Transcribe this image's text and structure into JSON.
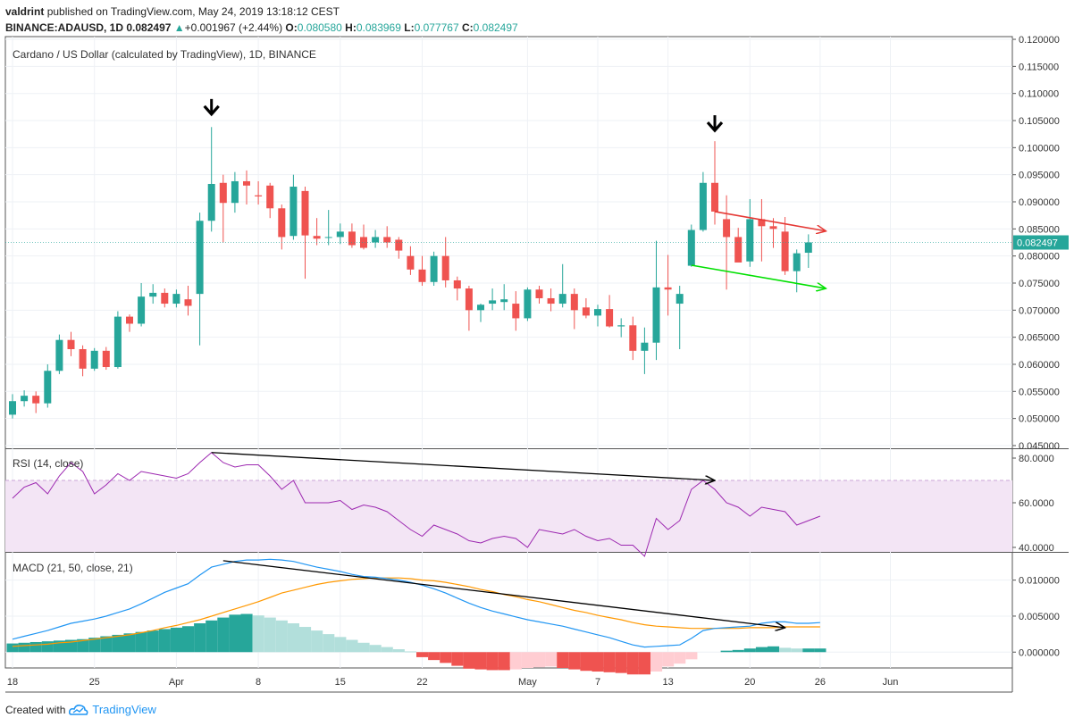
{
  "header": {
    "author": "valdrint",
    "published": "published on TradingView.com, May 24, 2019 13:18:12 CEST",
    "symbol": "BINANCE:ADAUSD, 1D",
    "last": "0.082497",
    "change_arrow": "▲",
    "change": "+0.001967 (+2.44%)",
    "o_label": "O:",
    "o": "0.080580",
    "h_label": "H:",
    "h": "0.083969",
    "l_label": "L:",
    "l": "0.077767",
    "c_label": "C:",
    "c": "0.082497"
  },
  "footer": {
    "created_with": "Created with",
    "brand": "TradingView",
    "logo_icon": "tradingview-cloud-icon"
  },
  "colors": {
    "up": "#26a69a",
    "down": "#ef5350",
    "rsi": "#9c27b0",
    "rsi_band": "#f3e5f5",
    "macd": "#2196f3",
    "signal": "#ff9800",
    "hist_up_strong": "#26a69a",
    "hist_up_weak": "#b2dfdb",
    "hist_down_strong": "#ef5350",
    "hist_down_weak": "#ffcdd2",
    "red_trendline": "#e53935",
    "green_trendline": "#00e000",
    "divergence_line": "#000000"
  },
  "chart_data": [
    {
      "type": "candlestick",
      "title": "Cardano / US Dollar (calculated by TradingView), 1D, BINANCE",
      "ylim": [
        0.0445,
        0.1205
      ],
      "yticks": [
        "0.045000",
        "0.050000",
        "0.055000",
        "0.060000",
        "0.065000",
        "0.070000",
        "0.075000",
        "0.080000",
        "0.085000",
        "0.090000",
        "0.095000",
        "0.100000",
        "0.105000",
        "0.110000",
        "0.115000",
        "0.120000"
      ],
      "ytick_values": [
        0.045,
        0.05,
        0.055,
        0.06,
        0.065,
        0.07,
        0.075,
        0.08,
        0.085,
        0.09,
        0.095,
        0.1,
        0.105,
        0.11,
        0.115,
        0.12
      ],
      "last_price_label": "0.082497",
      "last_price": 0.082497,
      "x_tick_labels": [
        {
          "day": 0,
          "label": "18"
        },
        {
          "day": 7,
          "label": "25"
        },
        {
          "day": 14,
          "label": "Apr"
        },
        {
          "day": 21,
          "label": "8"
        },
        {
          "day": 28,
          "label": "15"
        },
        {
          "day": 35,
          "label": "22"
        },
        {
          "day": 44,
          "label": "May"
        },
        {
          "day": 50,
          "label": "7"
        },
        {
          "day": 56,
          "label": "13"
        },
        {
          "day": 63,
          "label": "20"
        },
        {
          "day": 69,
          "label": "26"
        },
        {
          "day": 75,
          "label": "Jun"
        }
      ],
      "candles": [
        {
          "d": 0,
          "o": 0.0507,
          "h": 0.0545,
          "l": 0.05,
          "c": 0.0532
        },
        {
          "d": 1,
          "o": 0.0532,
          "h": 0.0552,
          "l": 0.0522,
          "c": 0.0542
        },
        {
          "d": 2,
          "o": 0.0542,
          "h": 0.055,
          "l": 0.051,
          "c": 0.0528
        },
        {
          "d": 3,
          "o": 0.0528,
          "h": 0.06,
          "l": 0.052,
          "c": 0.0588
        },
        {
          "d": 4,
          "o": 0.0588,
          "h": 0.0655,
          "l": 0.0582,
          "c": 0.0645
        },
        {
          "d": 5,
          "o": 0.0645,
          "h": 0.066,
          "l": 0.0615,
          "c": 0.0628
        },
        {
          "d": 6,
          "o": 0.0628,
          "h": 0.0635,
          "l": 0.0578,
          "c": 0.0592
        },
        {
          "d": 7,
          "o": 0.0592,
          "h": 0.063,
          "l": 0.0588,
          "c": 0.0625
        },
        {
          "d": 8,
          "o": 0.0625,
          "h": 0.0632,
          "l": 0.059,
          "c": 0.0595
        },
        {
          "d": 9,
          "o": 0.0595,
          "h": 0.0698,
          "l": 0.0592,
          "c": 0.0688
        },
        {
          "d": 10,
          "o": 0.0688,
          "h": 0.0692,
          "l": 0.066,
          "c": 0.0675
        },
        {
          "d": 11,
          "o": 0.0675,
          "h": 0.075,
          "l": 0.067,
          "c": 0.0725
        },
        {
          "d": 12,
          "o": 0.0725,
          "h": 0.0748,
          "l": 0.0712,
          "c": 0.0732
        },
        {
          "d": 13,
          "o": 0.0732,
          "h": 0.074,
          "l": 0.0705,
          "c": 0.0712
        },
        {
          "d": 14,
          "o": 0.0712,
          "h": 0.0738,
          "l": 0.0705,
          "c": 0.073
        },
        {
          "d": 15,
          "o": 0.072,
          "h": 0.0745,
          "l": 0.069,
          "c": 0.0708
        },
        {
          "d": 16,
          "o": 0.073,
          "h": 0.088,
          "l": 0.0635,
          "c": 0.0865
        },
        {
          "d": 17,
          "o": 0.0865,
          "h": 0.1038,
          "l": 0.0845,
          "c": 0.0933
        },
        {
          "d": 18,
          "o": 0.0935,
          "h": 0.095,
          "l": 0.0825,
          "c": 0.0898
        },
        {
          "d": 19,
          "o": 0.0898,
          "h": 0.0955,
          "l": 0.088,
          "c": 0.0938
        },
        {
          "d": 20,
          "o": 0.0938,
          "h": 0.0958,
          "l": 0.0895,
          "c": 0.093
        },
        {
          "d": 21,
          "o": 0.0912,
          "h": 0.0938,
          "l": 0.0895,
          "c": 0.091
        },
        {
          "d": 22,
          "o": 0.093,
          "h": 0.0935,
          "l": 0.087,
          "c": 0.0888
        },
        {
          "d": 23,
          "o": 0.0888,
          "h": 0.0895,
          "l": 0.0812,
          "c": 0.0835
        },
        {
          "d": 24,
          "o": 0.0837,
          "h": 0.095,
          "l": 0.083,
          "c": 0.0928
        },
        {
          "d": 25,
          "o": 0.092,
          "h": 0.0928,
          "l": 0.0758,
          "c": 0.0838
        },
        {
          "d": 26,
          "o": 0.0837,
          "h": 0.087,
          "l": 0.082,
          "c": 0.0832
        },
        {
          "d": 27,
          "o": 0.0835,
          "h": 0.0885,
          "l": 0.082,
          "c": 0.0835
        },
        {
          "d": 28,
          "o": 0.0835,
          "h": 0.086,
          "l": 0.0822,
          "c": 0.0845
        },
        {
          "d": 29,
          "o": 0.0845,
          "h": 0.086,
          "l": 0.0815,
          "c": 0.082
        },
        {
          "d": 30,
          "o": 0.0835,
          "h": 0.0858,
          "l": 0.0812,
          "c": 0.0815
        },
        {
          "d": 31,
          "o": 0.0825,
          "h": 0.0848,
          "l": 0.0815,
          "c": 0.0835
        },
        {
          "d": 32,
          "o": 0.0835,
          "h": 0.0855,
          "l": 0.0815,
          "c": 0.0825
        },
        {
          "d": 33,
          "o": 0.083,
          "h": 0.0835,
          "l": 0.0795,
          "c": 0.081
        },
        {
          "d": 34,
          "o": 0.08,
          "h": 0.0818,
          "l": 0.0765,
          "c": 0.0775
        },
        {
          "d": 35,
          "o": 0.0775,
          "h": 0.08,
          "l": 0.0745,
          "c": 0.0752
        },
        {
          "d": 36,
          "o": 0.0752,
          "h": 0.0808,
          "l": 0.0745,
          "c": 0.08
        },
        {
          "d": 37,
          "o": 0.08,
          "h": 0.0835,
          "l": 0.0742,
          "c": 0.0755
        },
        {
          "d": 38,
          "o": 0.0755,
          "h": 0.0762,
          "l": 0.0718,
          "c": 0.074
        },
        {
          "d": 39,
          "o": 0.074,
          "h": 0.0745,
          "l": 0.0662,
          "c": 0.07
        },
        {
          "d": 40,
          "o": 0.07,
          "h": 0.0712,
          "l": 0.0678,
          "c": 0.071
        },
        {
          "d": 41,
          "o": 0.0712,
          "h": 0.074,
          "l": 0.07,
          "c": 0.0718
        },
        {
          "d": 42,
          "o": 0.0715,
          "h": 0.0748,
          "l": 0.07,
          "c": 0.072
        },
        {
          "d": 43,
          "o": 0.0712,
          "h": 0.0735,
          "l": 0.0662,
          "c": 0.0685
        },
        {
          "d": 44,
          "o": 0.0685,
          "h": 0.0742,
          "l": 0.068,
          "c": 0.0738
        },
        {
          "d": 45,
          "o": 0.0738,
          "h": 0.0745,
          "l": 0.0712,
          "c": 0.0722
        },
        {
          "d": 46,
          "o": 0.0722,
          "h": 0.074,
          "l": 0.0698,
          "c": 0.0712
        },
        {
          "d": 47,
          "o": 0.0712,
          "h": 0.0785,
          "l": 0.0705,
          "c": 0.073
        },
        {
          "d": 48,
          "o": 0.073,
          "h": 0.074,
          "l": 0.0665,
          "c": 0.07
        },
        {
          "d": 49,
          "o": 0.0705,
          "h": 0.0722,
          "l": 0.0685,
          "c": 0.069
        },
        {
          "d": 50,
          "o": 0.069,
          "h": 0.071,
          "l": 0.067,
          "c": 0.0702
        },
        {
          "d": 51,
          "o": 0.0702,
          "h": 0.0728,
          "l": 0.0668,
          "c": 0.067
        },
        {
          "d": 52,
          "o": 0.067,
          "h": 0.0685,
          "l": 0.065,
          "c": 0.0672
        },
        {
          "d": 53,
          "o": 0.0672,
          "h": 0.0688,
          "l": 0.0608,
          "c": 0.0625
        },
        {
          "d": 54,
          "o": 0.0625,
          "h": 0.0668,
          "l": 0.0582,
          "c": 0.064
        },
        {
          "d": 55,
          "o": 0.064,
          "h": 0.0828,
          "l": 0.0608,
          "c": 0.0742
        },
        {
          "d": 56,
          "o": 0.0742,
          "h": 0.0802,
          "l": 0.069,
          "c": 0.0738
        },
        {
          "d": 57,
          "o": 0.0712,
          "h": 0.0745,
          "l": 0.0628,
          "c": 0.073
        },
        {
          "d": 58,
          "o": 0.0782,
          "h": 0.0858,
          "l": 0.078,
          "c": 0.0848
        },
        {
          "d": 59,
          "o": 0.0848,
          "h": 0.0955,
          "l": 0.0845,
          "c": 0.0935
        },
        {
          "d": 60,
          "o": 0.0935,
          "h": 0.1012,
          "l": 0.0858,
          "c": 0.0882
        },
        {
          "d": 61,
          "o": 0.0868,
          "h": 0.0912,
          "l": 0.0738,
          "c": 0.0835
        },
        {
          "d": 62,
          "o": 0.0835,
          "h": 0.0852,
          "l": 0.079,
          "c": 0.0788
        },
        {
          "d": 63,
          "o": 0.079,
          "h": 0.0905,
          "l": 0.078,
          "c": 0.0868
        },
        {
          "d": 64,
          "o": 0.0868,
          "h": 0.0905,
          "l": 0.079,
          "c": 0.0855
        },
        {
          "d": 65,
          "o": 0.0855,
          "h": 0.087,
          "l": 0.0815,
          "c": 0.085
        },
        {
          "d": 66,
          "o": 0.0845,
          "h": 0.0872,
          "l": 0.0765,
          "c": 0.0772
        },
        {
          "d": 67,
          "o": 0.0772,
          "h": 0.0812,
          "l": 0.0733,
          "c": 0.0805
        },
        {
          "d": 68,
          "o": 0.0806,
          "h": 0.084,
          "l": 0.0778,
          "c": 0.0825
        }
      ],
      "annotations": {
        "peak_arrows": [
          {
            "day": 17,
            "price": 0.1075
          },
          {
            "day": 60,
            "price": 0.1045
          }
        ],
        "red_trendline": {
          "from": {
            "day": 60,
            "price": 0.0882
          },
          "to": {
            "day": 69.5,
            "price": 0.0846
          }
        },
        "green_trendline": {
          "from": {
            "day": 58,
            "price": 0.0783
          },
          "to": {
            "day": 69.5,
            "price": 0.074
          }
        }
      }
    },
    {
      "type": "line",
      "title": "RSI (14, close)",
      "ylim": [
        38,
        84
      ],
      "yticks": [
        "40.0000",
        "60.0000",
        "80.0000"
      ],
      "ytick_values": [
        40,
        60,
        80
      ],
      "band": [
        30,
        70
      ],
      "values": [
        62,
        67,
        69,
        64,
        72,
        78,
        74,
        64,
        68,
        73,
        70,
        74,
        73,
        72,
        71,
        73,
        78,
        82.5,
        78,
        76,
        77,
        77,
        72,
        66,
        70,
        60,
        60,
        60,
        61,
        57,
        59,
        58,
        56,
        52,
        48,
        45,
        50,
        48,
        46,
        43,
        42,
        44,
        45,
        44,
        40,
        48,
        47,
        46,
        48,
        45,
        43,
        44,
        41,
        41,
        36,
        53,
        48,
        52,
        66,
        70,
        66,
        60,
        58,
        54,
        58,
        57,
        56,
        50,
        52,
        54
      ],
      "annotation_line": {
        "from": {
          "day": 17,
          "value": 82.5
        },
        "to": {
          "day": 60,
          "value": 70
        }
      }
    },
    {
      "type": "macd",
      "title": "MACD (21, 50, close, 21)",
      "ylim": [
        -0.0022,
        0.0138
      ],
      "yticks": [
        "0.000000",
        "0.005000",
        "0.010000"
      ],
      "ytick_values": [
        0,
        0.005,
        0.01
      ],
      "macd": [
        0.0018,
        0.0022,
        0.0026,
        0.003,
        0.0035,
        0.004,
        0.0043,
        0.0046,
        0.005,
        0.0055,
        0.006,
        0.0067,
        0.0075,
        0.0083,
        0.0089,
        0.0095,
        0.0107,
        0.0118,
        0.0122,
        0.0126,
        0.0128,
        0.0128,
        0.0129,
        0.0128,
        0.0126,
        0.0122,
        0.0118,
        0.0115,
        0.0112,
        0.0108,
        0.0105,
        0.0104,
        0.0102,
        0.01,
        0.0097,
        0.0093,
        0.0088,
        0.0082,
        0.0075,
        0.0068,
        0.0062,
        0.0057,
        0.0053,
        0.0049,
        0.0045,
        0.0042,
        0.0039,
        0.0036,
        0.0032,
        0.0028,
        0.0024,
        0.002,
        0.0015,
        0.001,
        0.0007,
        0.0008,
        0.0009,
        0.001,
        0.0019,
        0.003,
        0.0033,
        0.0034,
        0.0035,
        0.0036,
        0.004,
        0.0042,
        0.0042,
        0.004,
        0.004,
        0.0041
      ],
      "signal": [
        0.0008,
        0.0009,
        0.001,
        0.0011,
        0.0013,
        0.0014,
        0.0016,
        0.0018,
        0.002,
        0.0022,
        0.0024,
        0.0027,
        0.003,
        0.0034,
        0.0037,
        0.0041,
        0.0045,
        0.005,
        0.0055,
        0.006,
        0.0065,
        0.007,
        0.0076,
        0.0082,
        0.0086,
        0.009,
        0.0094,
        0.0097,
        0.0099,
        0.0101,
        0.0102,
        0.0103,
        0.0103,
        0.0103,
        0.0102,
        0.01,
        0.0099,
        0.0097,
        0.0094,
        0.0091,
        0.0087,
        0.0084,
        0.008,
        0.0077,
        0.0073,
        0.007,
        0.0066,
        0.0062,
        0.0058,
        0.0055,
        0.0051,
        0.0048,
        0.0045,
        0.0041,
        0.0038,
        0.0036,
        0.0035,
        0.0034,
        0.0033,
        0.0033,
        0.0033,
        0.0033,
        0.0033,
        0.0034,
        0.0034,
        0.0034,
        0.0035,
        0.0035,
        0.0035,
        0.0035
      ],
      "histogram": [
        0.0012,
        0.0013,
        0.0014,
        0.0015,
        0.0016,
        0.0017,
        0.0018,
        0.002,
        0.0022,
        0.0024,
        0.0026,
        0.0028,
        0.003,
        0.0032,
        0.0034,
        0.0036,
        0.004,
        0.0044,
        0.0048,
        0.0052,
        0.0053,
        0.0051,
        0.0048,
        0.0044,
        0.004,
        0.0035,
        0.003,
        0.0025,
        0.0021,
        0.0017,
        0.0013,
        0.001,
        0.0007,
        0.0004,
        0.0001,
        -0.0007,
        -0.0011,
        -0.0015,
        -0.0019,
        -0.0023,
        -0.0024,
        -0.0025,
        -0.0025,
        -0.0024,
        -0.0022,
        -0.0021,
        -0.002,
        -0.0022,
        -0.0024,
        -0.0026,
        -0.0027,
        -0.0028,
        -0.0029,
        -0.0031,
        -0.0031,
        -0.0027,
        -0.002,
        -0.0016,
        -0.001,
        0,
        0,
        0.0002,
        0.0003,
        0.0005,
        0.0007,
        0.0008,
        0.0006,
        0.0005,
        0.0005,
        0.0005
      ],
      "annotation_line": {
        "from": {
          "day": 18,
          "value": 0.0127
        },
        "to": {
          "day": 66,
          "value": 0.0034
        }
      }
    }
  ]
}
